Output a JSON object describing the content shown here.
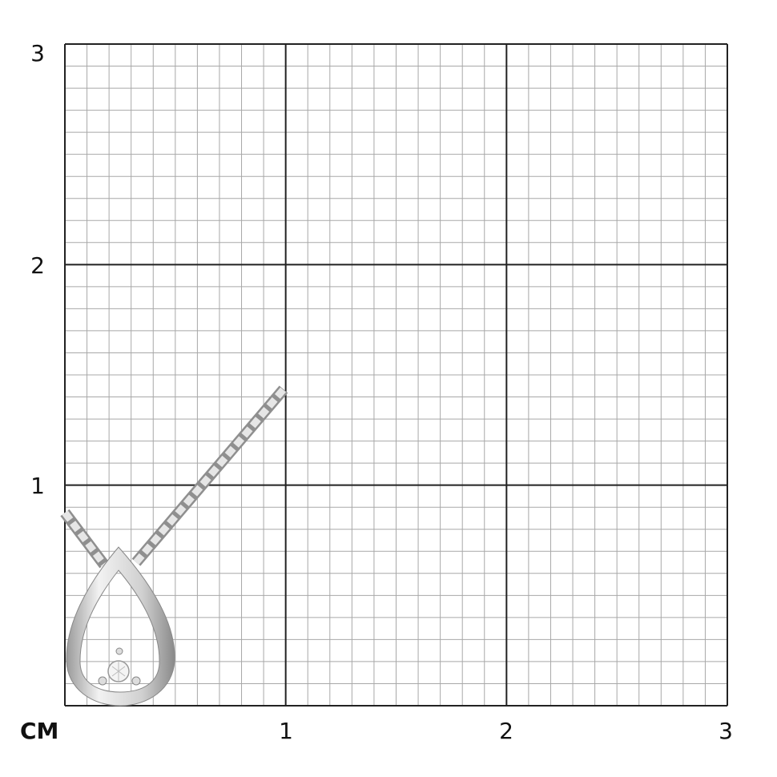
{
  "scale": {
    "unit_label": "CM",
    "x_ticks": [
      "1",
      "2",
      "3"
    ],
    "y_ticks": [
      "1",
      "2",
      "3"
    ],
    "range_cm": [
      0,
      3
    ],
    "minor_divisions_per_cm": 10
  },
  "product": {
    "type": "teardrop pendant with single stone on cable chain",
    "metal_color": "#c8c8c8",
    "height_cm": 0.72,
    "width_cm": 0.5
  },
  "colors": {
    "major_grid": "#222222",
    "minor_grid": "#a8a8a8"
  }
}
